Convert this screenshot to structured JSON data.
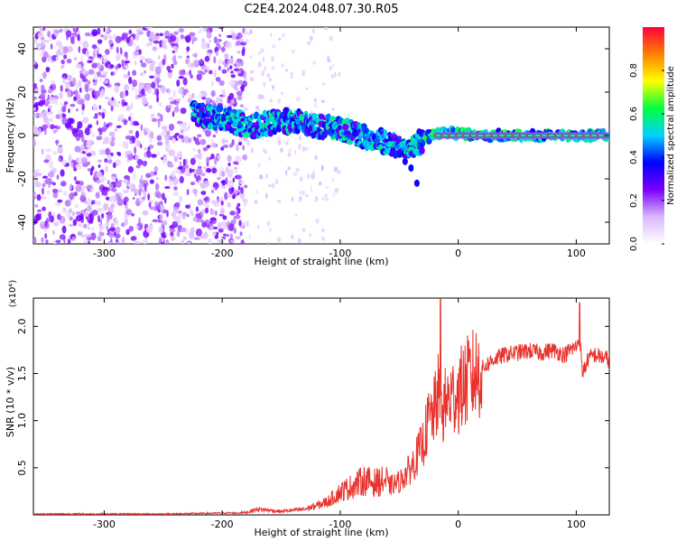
{
  "title": "C2E4.2024.048.07.30.R05",
  "chart_data": [
    {
      "type": "heatmap",
      "xlabel": "Height of straight line (km)",
      "ylabel": "Frequency (Hz)",
      "xlim": [
        -360,
        128
      ],
      "ylim": [
        -50,
        50
      ],
      "xticks": [
        -300,
        -200,
        -100,
        0,
        100
      ],
      "yticks": [
        -40,
        -20,
        0,
        20,
        40
      ],
      "colorbar": {
        "label": "Normalized spectral amplitude",
        "range": [
          0.0,
          1.0
        ],
        "ticks": [
          0.0,
          0.2,
          0.4,
          0.6,
          0.8
        ],
        "colors": [
          "#ffffff",
          "#d9b8ff",
          "#7a00ff",
          "#0000ff",
          "#00d0ff",
          "#00ff40",
          "#ffff00",
          "#ff8000",
          "#ff0040"
        ]
      },
      "ridge": {
        "x": [
          -225,
          -200,
          -175,
          -150,
          -125,
          -100,
          -75,
          -50,
          -40,
          -30,
          -20,
          -10,
          0,
          25,
          50,
          100,
          128
        ],
        "y": [
          10,
          8,
          4,
          7,
          5,
          3,
          -1,
          -5,
          -5,
          -2,
          1,
          1,
          1,
          0,
          0,
          0,
          0
        ]
      },
      "dropout": {
        "x": [
          -45,
          -40,
          -35
        ],
        "y": [
          -12,
          -15,
          -22
        ]
      }
    },
    {
      "type": "line",
      "xlabel": "Height of straight line (km)",
      "ylabel": "SNR (10 * v/v)",
      "multiplier": "(x10⁴)",
      "xlim": [
        -360,
        128
      ],
      "ylim": [
        0,
        2.3
      ],
      "xticks": [
        -300,
        -200,
        -100,
        0,
        100
      ],
      "yticks": [
        0.5,
        1.0,
        1.5,
        2.0
      ],
      "series": [
        {
          "color": "#e8322c",
          "x": [
            -360,
            -300,
            -250,
            -200,
            -180,
            -170,
            -160,
            -150,
            -140,
            -130,
            -120,
            -110,
            -100,
            -90,
            -80,
            -70,
            -60,
            -50,
            -40,
            -30,
            -25,
            -20,
            -17,
            -15,
            -10,
            -5,
            0,
            10,
            20,
            30,
            40,
            50,
            60,
            70,
            80,
            90,
            95,
            100,
            103,
            105,
            110,
            115,
            120,
            128
          ],
          "y": [
            0.01,
            0.01,
            0.01,
            0.02,
            0.02,
            0.05,
            0.04,
            0.03,
            0.04,
            0.05,
            0.08,
            0.12,
            0.2,
            0.25,
            0.3,
            0.28,
            0.3,
            0.35,
            0.5,
            0.75,
            1.0,
            1.1,
            1.3,
            1.05,
            1.2,
            1.25,
            1.3,
            1.45,
            1.55,
            1.65,
            1.7,
            1.72,
            1.74,
            1.72,
            1.75,
            1.7,
            1.75,
            1.78,
            1.9,
            1.5,
            1.65,
            1.7,
            1.68,
            1.65
          ]
        }
      ]
    }
  ]
}
